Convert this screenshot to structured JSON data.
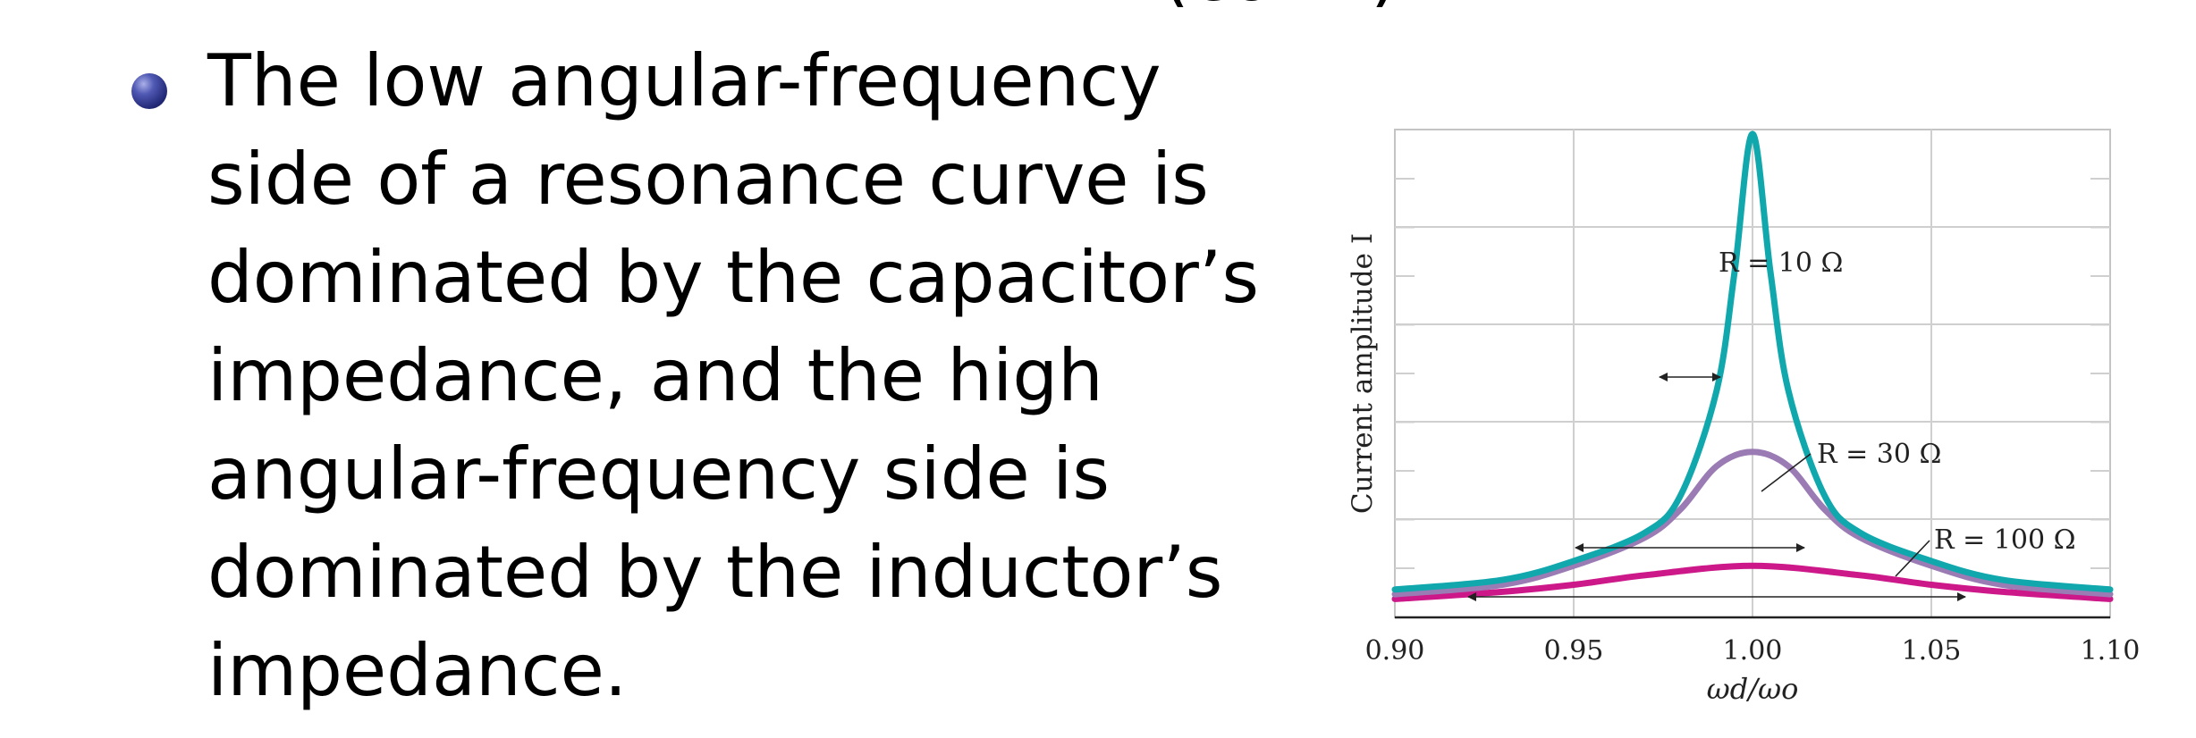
{
  "slide": {
    "title_fragment": "(cont.)",
    "bullet_lines": [
      "The low angular-frequency",
      "side of a resonance curve is",
      "dominated by the capacitor’s",
      "impedance, and the high",
      "angular-frequency side is",
      "dominated by the inductor’s",
      "impedance."
    ]
  },
  "chart_data": {
    "type": "line",
    "xlabel": "ωd/ωo",
    "ylabel": "Current amplitude I",
    "xlim": [
      0.9,
      1.1
    ],
    "xticks": [
      "0.90",
      "0.95",
      "1.00",
      "1.05",
      "1.10"
    ],
    "grid": true,
    "series": [
      {
        "name": "R = 10 Ω",
        "color": "#10a8ad",
        "x": [
          0.9,
          0.93,
          0.95,
          0.97,
          0.98,
          0.99,
          0.995,
          1.0,
          1.005,
          1.01,
          1.02,
          1.03,
          1.05,
          1.07,
          1.1
        ],
        "y": [
          0.04,
          0.06,
          0.1,
          0.16,
          0.24,
          0.46,
          0.71,
          1.0,
          0.71,
          0.46,
          0.24,
          0.16,
          0.1,
          0.06,
          0.04
        ]
      },
      {
        "name": "R = 30 Ω",
        "color": "#9b7bb4",
        "x": [
          0.9,
          0.93,
          0.95,
          0.97,
          0.98,
          0.99,
          1.0,
          1.01,
          1.02,
          1.03,
          1.05,
          1.07,
          1.1
        ],
        "y": [
          0.03,
          0.05,
          0.09,
          0.15,
          0.21,
          0.3,
          0.33,
          0.3,
          0.21,
          0.15,
          0.09,
          0.05,
          0.03
        ]
      },
      {
        "name": "R = 100 Ω",
        "color": "#cc1888",
        "x": [
          0.9,
          0.93,
          0.95,
          0.97,
          1.0,
          1.03,
          1.05,
          1.07,
          1.1
        ],
        "y": [
          0.02,
          0.035,
          0.05,
          0.07,
          0.09,
          0.07,
          0.05,
          0.035,
          0.02
        ]
      }
    ],
    "annotations": [
      {
        "label": "R = 10 Ω"
      },
      {
        "label": "R = 30 Ω"
      },
      {
        "label": "R = 100 Ω"
      }
    ]
  }
}
